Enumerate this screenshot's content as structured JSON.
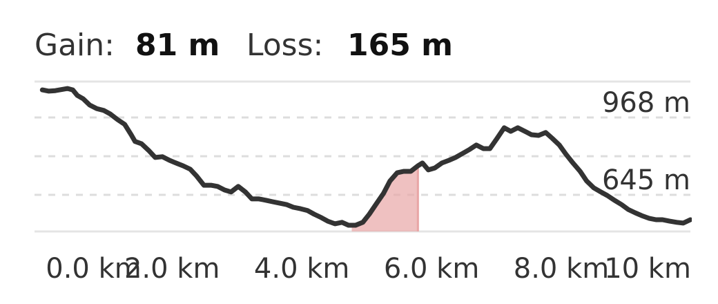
{
  "header": {
    "gain_label": "Gain:",
    "gain_value": "81 m",
    "loss_label": "Loss:",
    "loss_value": "165 m"
  },
  "chart_data": {
    "type": "area-line",
    "x": [
      0,
      0.1,
      0.2,
      0.39,
      0.47,
      0.54,
      0.63,
      0.73,
      0.84,
      0.95,
      1.05,
      1.16,
      1.27,
      1.37,
      1.43,
      1.53,
      1.64,
      1.74,
      1.85,
      1.96,
      2.06,
      2.17,
      2.28,
      2.38,
      2.49,
      2.6,
      2.7,
      2.81,
      2.91,
      3.02,
      3.13,
      3.23,
      3.34,
      3.45,
      3.55,
      3.66,
      3.77,
      3.87,
      3.98,
      4.09,
      4.19,
      4.3,
      4.4,
      4.51,
      4.62,
      4.72,
      4.83,
      4.94,
      5.04,
      5.15,
      5.26,
      5.36,
      5.47,
      5.57,
      5.68,
      5.79,
      5.86,
      5.95,
      6.05,
      6.16,
      6.27,
      6.37,
      6.48,
      6.59,
      6.69,
      6.8,
      6.9,
      7.01,
      7.12,
      7.22,
      7.33,
      7.44,
      7.54,
      7.65,
      7.76,
      7.86,
      7.97,
      8.07,
      8.18,
      8.29,
      8.39,
      8.5,
      8.61,
      8.71,
      8.82,
      8.93,
      9.03,
      9.14,
      9.24,
      9.35,
      9.46,
      9.56,
      9.67,
      9.78,
      9.88,
      9.99
    ],
    "series": [
      {
        "color": "#333333",
        "values": [
          1083,
          1078,
          1080,
          1089,
          1083,
          1060,
          1046,
          1020,
          1005,
          997,
          982,
          959,
          939,
          896,
          868,
          858,
          830,
          801,
          804,
          789,
          778,
          766,
          752,
          723,
          685,
          685,
          680,
          665,
          657,
          680,
          657,
          628,
          628,
          622,
          616,
          610,
          604,
          593,
          587,
          579,
          564,
          550,
          535,
          524,
          530,
          518,
          518,
          530,
          564,
          608,
          651,
          703,
          737,
          743,
          743,
          766,
          778,
          749,
          757,
          778,
          789,
          801,
          818,
          835,
          853,
          838,
          838,
          881,
          925,
          910,
          925,
          910,
          896,
          893,
          905,
          881,
          853,
          815,
          778,
          743,
          703,
          674,
          657,
          642,
          622,
          604,
          584,
          570,
          558,
          547,
          541,
          541,
          535,
          530,
          527,
          541
        ]
      }
    ],
    "highlight": {
      "from": 4.77,
      "to": 5.79,
      "color": "#e8a6a6"
    },
    "xlim": [
      -0.12,
      9.99
    ],
    "xticks": [
      {
        "value": 0,
        "label": "0.0 km"
      },
      {
        "value": 2,
        "label": "2.0 km"
      },
      {
        "value": 4,
        "label": "4.0 km"
      },
      {
        "value": 6,
        "label": "6.0 km"
      },
      {
        "value": 8,
        "label": "8.0 km"
      },
      {
        "value": 10,
        "label": "10 km"
      }
    ],
    "ylim": [
      492,
      1118
    ],
    "yticks": [
      {
        "value": 968,
        "label": "968 m"
      },
      {
        "value": 806,
        "label": null
      },
      {
        "value": 645,
        "label": "645 m"
      }
    ],
    "grid": true
  }
}
